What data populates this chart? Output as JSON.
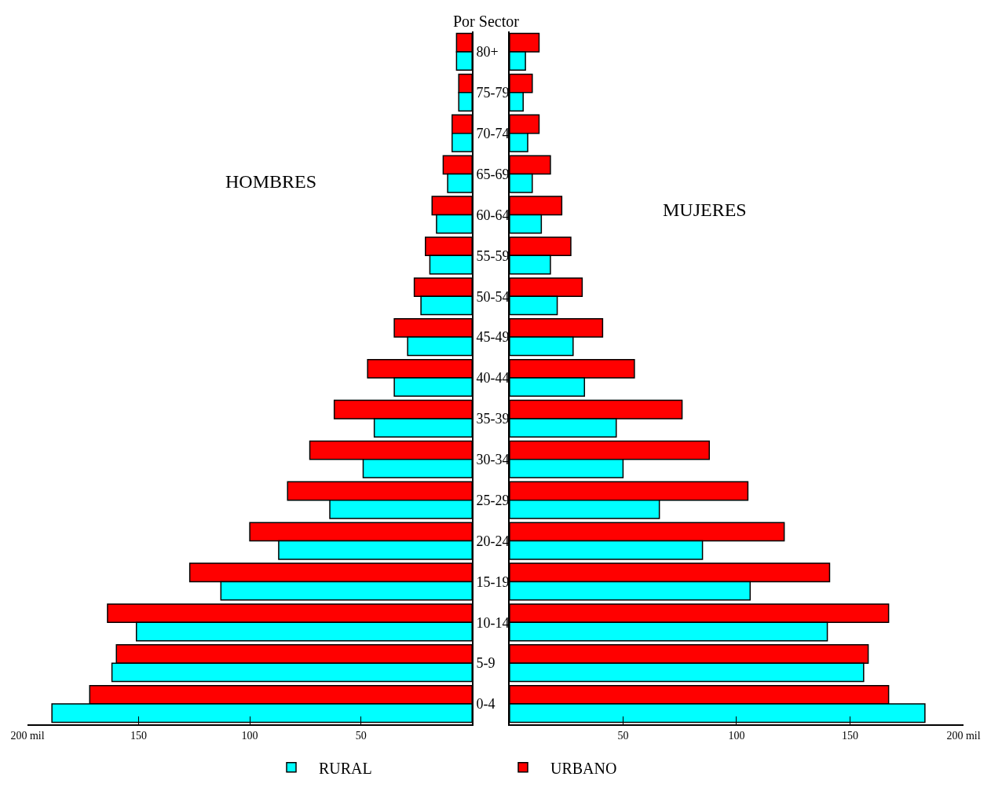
{
  "chart_data": [
    {
      "type": "bar",
      "title": "Por Sector",
      "orientation": "horizontal",
      "annotations": [
        "HOMBRES"
      ],
      "legend": "bottom",
      "categories": [
        "80+",
        "75-79",
        "70-74",
        "65-69",
        "60-64",
        "55-59",
        "50-54",
        "45-49",
        "40-44",
        "35-39",
        "30-34",
        "25-29",
        "20-24",
        "15-19",
        "10-14",
        "5-9",
        "0-4"
      ],
      "series": [
        {
          "name": "URBANO",
          "color": "#ff0000",
          "values": [
            7,
            6,
            9,
            13,
            18,
            21,
            26,
            35,
            47,
            62,
            73,
            83,
            100,
            127,
            164,
            160,
            172
          ]
        },
        {
          "name": "RURAL",
          "color": "#00ffff",
          "values": [
            7,
            6,
            9,
            11,
            16,
            19,
            23,
            29,
            35,
            44,
            49,
            64,
            87,
            113,
            151,
            162,
            189
          ]
        }
      ],
      "xlim": [
        200,
        0
      ],
      "xticks": [
        {
          "value": 200,
          "label": "200 mil"
        },
        150,
        100,
        50
      ]
    },
    {
      "type": "bar",
      "orientation": "horizontal",
      "annotations": [
        "MUJERES"
      ],
      "legend": "bottom",
      "tick_labels": "x",
      "categories": [
        "80+",
        "75-79",
        "70-74",
        "65-69",
        "60-64",
        "55-59",
        "50-54",
        "45-49",
        "40-44",
        "35-39",
        "30-34",
        "25-29",
        "20-24",
        "15-19",
        "10-14",
        "5-9",
        "0-4"
      ],
      "series": [
        {
          "name": "URBANO",
          "color": "#ff0000",
          "values": [
            13,
            10,
            13,
            18,
            23,
            27,
            32,
            41,
            55,
            76,
            88,
            105,
            121,
            141,
            167,
            158,
            167
          ]
        },
        {
          "name": "RURAL",
          "color": "#00ffff",
          "values": [
            7,
            6,
            8,
            10,
            14,
            18,
            21,
            28,
            33,
            47,
            50,
            66,
            85,
            106,
            140,
            156,
            183
          ]
        }
      ],
      "xlim": [
        0,
        200
      ],
      "xticks": [
        50,
        100,
        150,
        {
          "value": 200,
          "label": "200 mil"
        }
      ]
    }
  ]
}
